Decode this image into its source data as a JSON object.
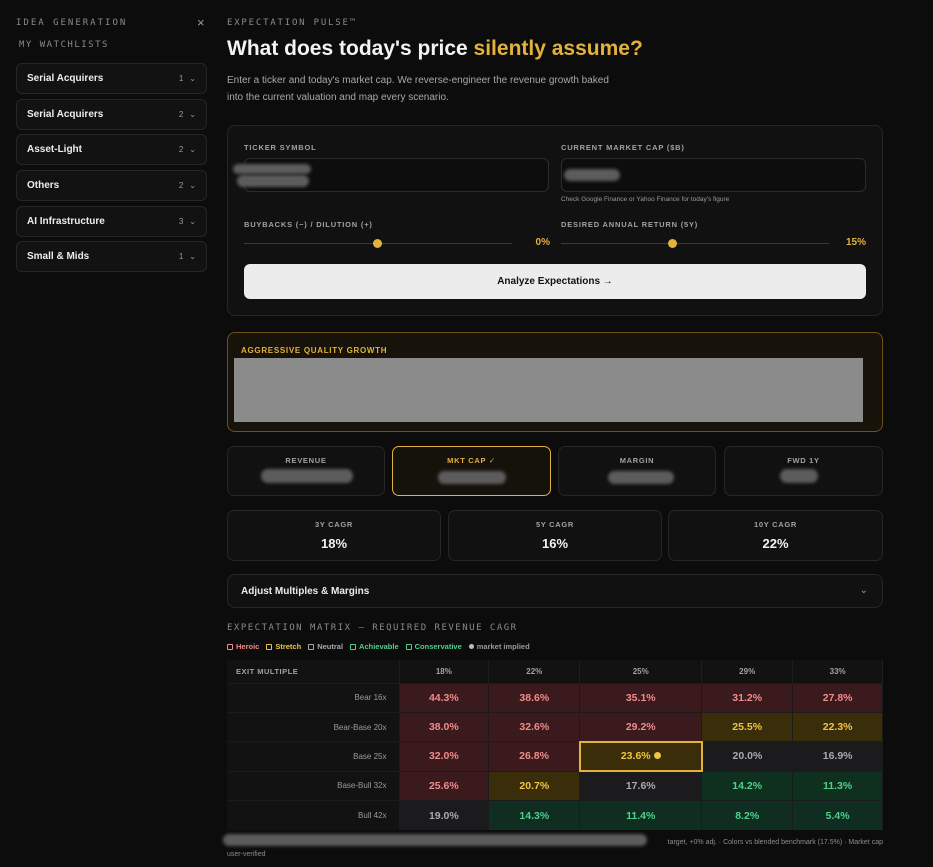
{
  "sidebar": {
    "heading": "IDEA GENERATION",
    "close_icon": "×",
    "subheading": "MY WATCHLISTS",
    "items": [
      {
        "label": "Serial Acquirers",
        "count": "1"
      },
      {
        "label": "Serial Acquirers",
        "count": "2"
      },
      {
        "label": "Asset-Light",
        "count": "2"
      },
      {
        "label": "Others",
        "count": "2"
      },
      {
        "label": "AI Infrastructure",
        "count": "3"
      },
      {
        "label": "Small & Mids",
        "count": "1"
      }
    ],
    "chevron": "⌄"
  },
  "header": {
    "kicker": "EXPECTATION PULSE™",
    "title_main": "What does today's price ",
    "title_highlight": "silently assume?",
    "description": "Enter a ticker and today's market cap. We reverse-engineer the revenue growth baked into the current valuation and map every scenario."
  },
  "form": {
    "ticker_label": "TICKER SYMBOL",
    "mktcap_label": "CURRENT MARKET CAP ($B)",
    "mktcap_hint": "Check Google Finance or Yahoo Finance for today's figure",
    "buyback_label": "BUYBACKS (−) / DILUTION (+)",
    "buyback_value": "0%",
    "return_label": "DESIRED ANNUAL RETURN (5Y)",
    "return_value": "15%",
    "analyze_label": "Analyze Expectations →"
  },
  "verdict": {
    "title": "AGGRESSIVE QUALITY GROWTH"
  },
  "metrics": [
    {
      "label": "REVENUE",
      "selected": false
    },
    {
      "label": "MKT CAP ✓",
      "selected": true
    },
    {
      "label": "MARGIN",
      "selected": false
    },
    {
      "label": "FWD 1Y",
      "selected": false
    }
  ],
  "cagr": [
    {
      "label": "3Y CAGR",
      "value": "18%"
    },
    {
      "label": "5Y CAGR",
      "value": "16%"
    },
    {
      "label": "10Y CAGR",
      "value": "22%"
    }
  ],
  "adjust": {
    "label": "Adjust Multiples & Margins",
    "chevron": "⌄"
  },
  "matrix": {
    "title": "EXPECTATION MATRIX — REQUIRED REVENUE CAGR",
    "legend": [
      {
        "label": "Heroic",
        "color": "#f08b8b"
      },
      {
        "label": "Stretch",
        "color": "#f0c442"
      },
      {
        "label": "Neutral",
        "color": "#a9a9b0"
      },
      {
        "label": "Achievable",
        "color": "#4fd08a"
      },
      {
        "label": "Conservative",
        "color": "#4fd08a"
      },
      {
        "label": "market implied",
        "color": "#bdbdbd"
      }
    ],
    "corner": "EXIT MULTIPLE",
    "columns": [
      "18%",
      "22%",
      "25%",
      "29%",
      "33%"
    ],
    "rows": [
      {
        "label": "Bear 16x",
        "cells": [
          {
            "v": "44.3%",
            "k": "h"
          },
          {
            "v": "38.6%",
            "k": "h"
          },
          {
            "v": "35.1%",
            "k": "h"
          },
          {
            "v": "31.2%",
            "k": "h"
          },
          {
            "v": "27.8%",
            "k": "h"
          }
        ]
      },
      {
        "label": "Bear-Base 20x",
        "cells": [
          {
            "v": "38.0%",
            "k": "h"
          },
          {
            "v": "32.6%",
            "k": "h"
          },
          {
            "v": "29.2%",
            "k": "h"
          },
          {
            "v": "25.5%",
            "k": "s"
          },
          {
            "v": "22.3%",
            "k": "s"
          }
        ]
      },
      {
        "label": "Base 25x",
        "cells": [
          {
            "v": "32.0%",
            "k": "h"
          },
          {
            "v": "26.8%",
            "k": "h"
          },
          {
            "v": "23.6%",
            "k": "s",
            "marked": true
          },
          {
            "v": "20.0%",
            "k": "n"
          },
          {
            "v": "16.9%",
            "k": "n"
          }
        ]
      },
      {
        "label": "Base-Bull 32x",
        "cells": [
          {
            "v": "25.6%",
            "k": "h"
          },
          {
            "v": "20.7%",
            "k": "s"
          },
          {
            "v": "17.6%",
            "k": "n"
          },
          {
            "v": "14.2%",
            "k": "a"
          },
          {
            "v": "11.3%",
            "k": "a"
          }
        ]
      },
      {
        "label": "Bull 42x",
        "cells": [
          {
            "v": "19.0%",
            "k": "n"
          },
          {
            "v": "14.3%",
            "k": "c"
          },
          {
            "v": "11.4%",
            "k": "c"
          },
          {
            "v": "8.2%",
            "k": "c"
          },
          {
            "v": "5.4%",
            "k": "c"
          }
        ]
      }
    ]
  },
  "footer": {
    "line1_tail": "target, +0% adj. · Colors vs blended benchmark (17.5%) · Market cap",
    "line2": "user-verified"
  }
}
